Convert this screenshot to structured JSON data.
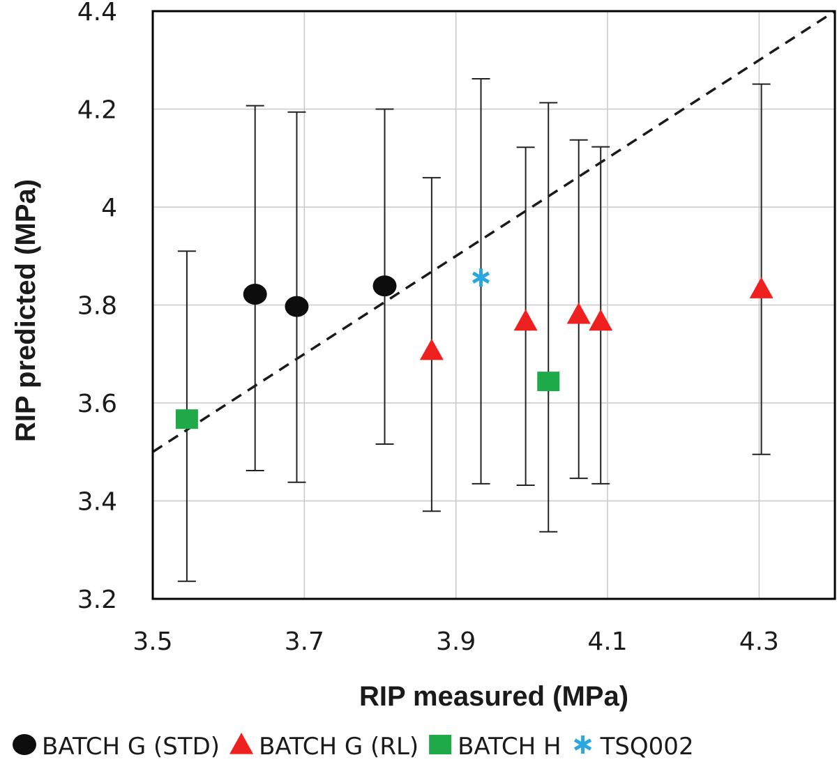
{
  "chart_data": {
    "type": "scatter",
    "title": "",
    "xlabel": "RIP measured (MPa)",
    "ylabel": "RIP predicted (MPa)",
    "xlim": [
      3.5,
      4.4
    ],
    "ylim": [
      3.2,
      4.4
    ],
    "x_ticks": [
      3.5,
      3.7,
      3.9,
      4.1,
      4.3
    ],
    "x_tick_labels": [
      "3.5",
      "3.7",
      "3.9",
      "4.1",
      "4.3"
    ],
    "y_ticks": [
      3.2,
      3.4,
      3.6,
      3.8,
      4.0,
      4.2,
      4.4
    ],
    "y_tick_labels": [
      "3.2",
      "3.4",
      "3.6",
      "3.8",
      "4",
      "4.2",
      "4.4"
    ],
    "grid": true,
    "legend_position": "bottom",
    "reference_line": {
      "style": "dashed",
      "color": "#1a1a1a",
      "x": [
        3.5,
        4.4
      ],
      "y": [
        3.5,
        4.4
      ]
    },
    "series": [
      {
        "name": "BATCH G (STD)",
        "marker": "circle",
        "color": "#0d0d0d",
        "points": [
          {
            "x": 3.635,
            "y": 3.822,
            "err_low": 3.462,
            "err_high": 4.207
          },
          {
            "x": 3.69,
            "y": 3.797,
            "err_low": 3.438,
            "err_high": 4.194
          },
          {
            "x": 3.806,
            "y": 3.839,
            "err_low": 3.516,
            "err_high": 4.2
          }
        ]
      },
      {
        "name": "BATCH G (RL)",
        "marker": "triangle",
        "color": "#ee2020",
        "points": [
          {
            "x": 3.868,
            "y": 3.707,
            "err_low": 3.379,
            "err_high": 4.06
          },
          {
            "x": 3.992,
            "y": 3.767,
            "err_low": 3.432,
            "err_high": 4.122
          },
          {
            "x": 4.062,
            "y": 3.781,
            "err_low": 3.446,
            "err_high": 4.137
          },
          {
            "x": 4.091,
            "y": 3.767,
            "err_low": 3.435,
            "err_high": 4.123
          },
          {
            "x": 4.303,
            "y": 3.833,
            "err_low": 3.495,
            "err_high": 4.251
          }
        ]
      },
      {
        "name": "BATCH H",
        "marker": "square",
        "color": "#1faa4a",
        "points": [
          {
            "x": 3.545,
            "y": 3.567,
            "err_low": 3.236,
            "err_high": 3.91
          },
          {
            "x": 4.022,
            "y": 3.644,
            "err_low": 3.337,
            "err_high": 4.213
          }
        ]
      },
      {
        "name": "TSQ002",
        "marker": "asterisk",
        "color": "#2aa7e0",
        "points": [
          {
            "x": 3.933,
            "y": 3.856,
            "err_low": 3.435,
            "err_high": 4.262
          }
        ]
      }
    ]
  }
}
